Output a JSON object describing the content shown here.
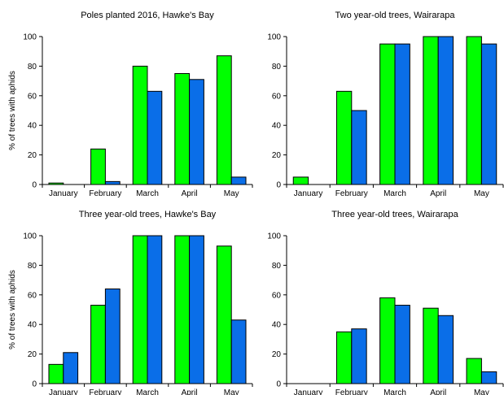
{
  "chart_data": [
    {
      "type": "bar",
      "title": "Poles planted 2016, Hawke's Bay",
      "xlabel": "",
      "ylabel": "% of trees with aphids",
      "ylim": [
        0,
        100
      ],
      "yticks": [
        0,
        20,
        40,
        60,
        80,
        100
      ],
      "categories": [
        "January",
        "February",
        "March",
        "April",
        "May"
      ],
      "series": [
        {
          "color": "#00ff00",
          "values": [
            1,
            24,
            80,
            75,
            87
          ]
        },
        {
          "color": "#0a6ee8",
          "values": [
            0,
            2,
            63,
            71,
            5
          ]
        }
      ],
      "grid": false,
      "legend": "none"
    },
    {
      "type": "bar",
      "title": "Two year-old trees, Wairarapa",
      "xlabel": "",
      "ylabel": "",
      "ylim": [
        0,
        100
      ],
      "yticks": [
        0,
        20,
        40,
        60,
        80,
        100
      ],
      "categories": [
        "January",
        "February",
        "March",
        "April",
        "May"
      ],
      "series": [
        {
          "color": "#00ff00",
          "values": [
            5,
            63,
            95,
            100,
            100
          ]
        },
        {
          "color": "#0a6ee8",
          "values": [
            0,
            50,
            95,
            100,
            95
          ]
        }
      ],
      "grid": false,
      "legend": "none"
    },
    {
      "type": "bar",
      "title": "Three year-old trees, Hawke's Bay",
      "xlabel": "",
      "ylabel": "% of trees with aphids",
      "ylim": [
        0,
        100
      ],
      "yticks": [
        0,
        20,
        40,
        60,
        80,
        100
      ],
      "categories": [
        "January",
        "February",
        "March",
        "April",
        "May"
      ],
      "series": [
        {
          "color": "#00ff00",
          "values": [
            13,
            53,
            100,
            100,
            93
          ]
        },
        {
          "color": "#0a6ee8",
          "values": [
            21,
            64,
            100,
            100,
            43
          ]
        }
      ],
      "grid": false,
      "legend": "none"
    },
    {
      "type": "bar",
      "title": "Three year-old trees, Wairarapa",
      "xlabel": "",
      "ylabel": "",
      "ylim": [
        0,
        100
      ],
      "yticks": [
        0,
        20,
        40,
        60,
        80,
        100
      ],
      "categories": [
        "January",
        "February",
        "March",
        "April",
        "May"
      ],
      "series": [
        {
          "color": "#00ff00",
          "values": [
            0,
            35,
            58,
            51,
            17
          ]
        },
        {
          "color": "#0a6ee8",
          "values": [
            0,
            37,
            53,
            46,
            8
          ]
        }
      ],
      "grid": false,
      "legend": "none"
    }
  ]
}
